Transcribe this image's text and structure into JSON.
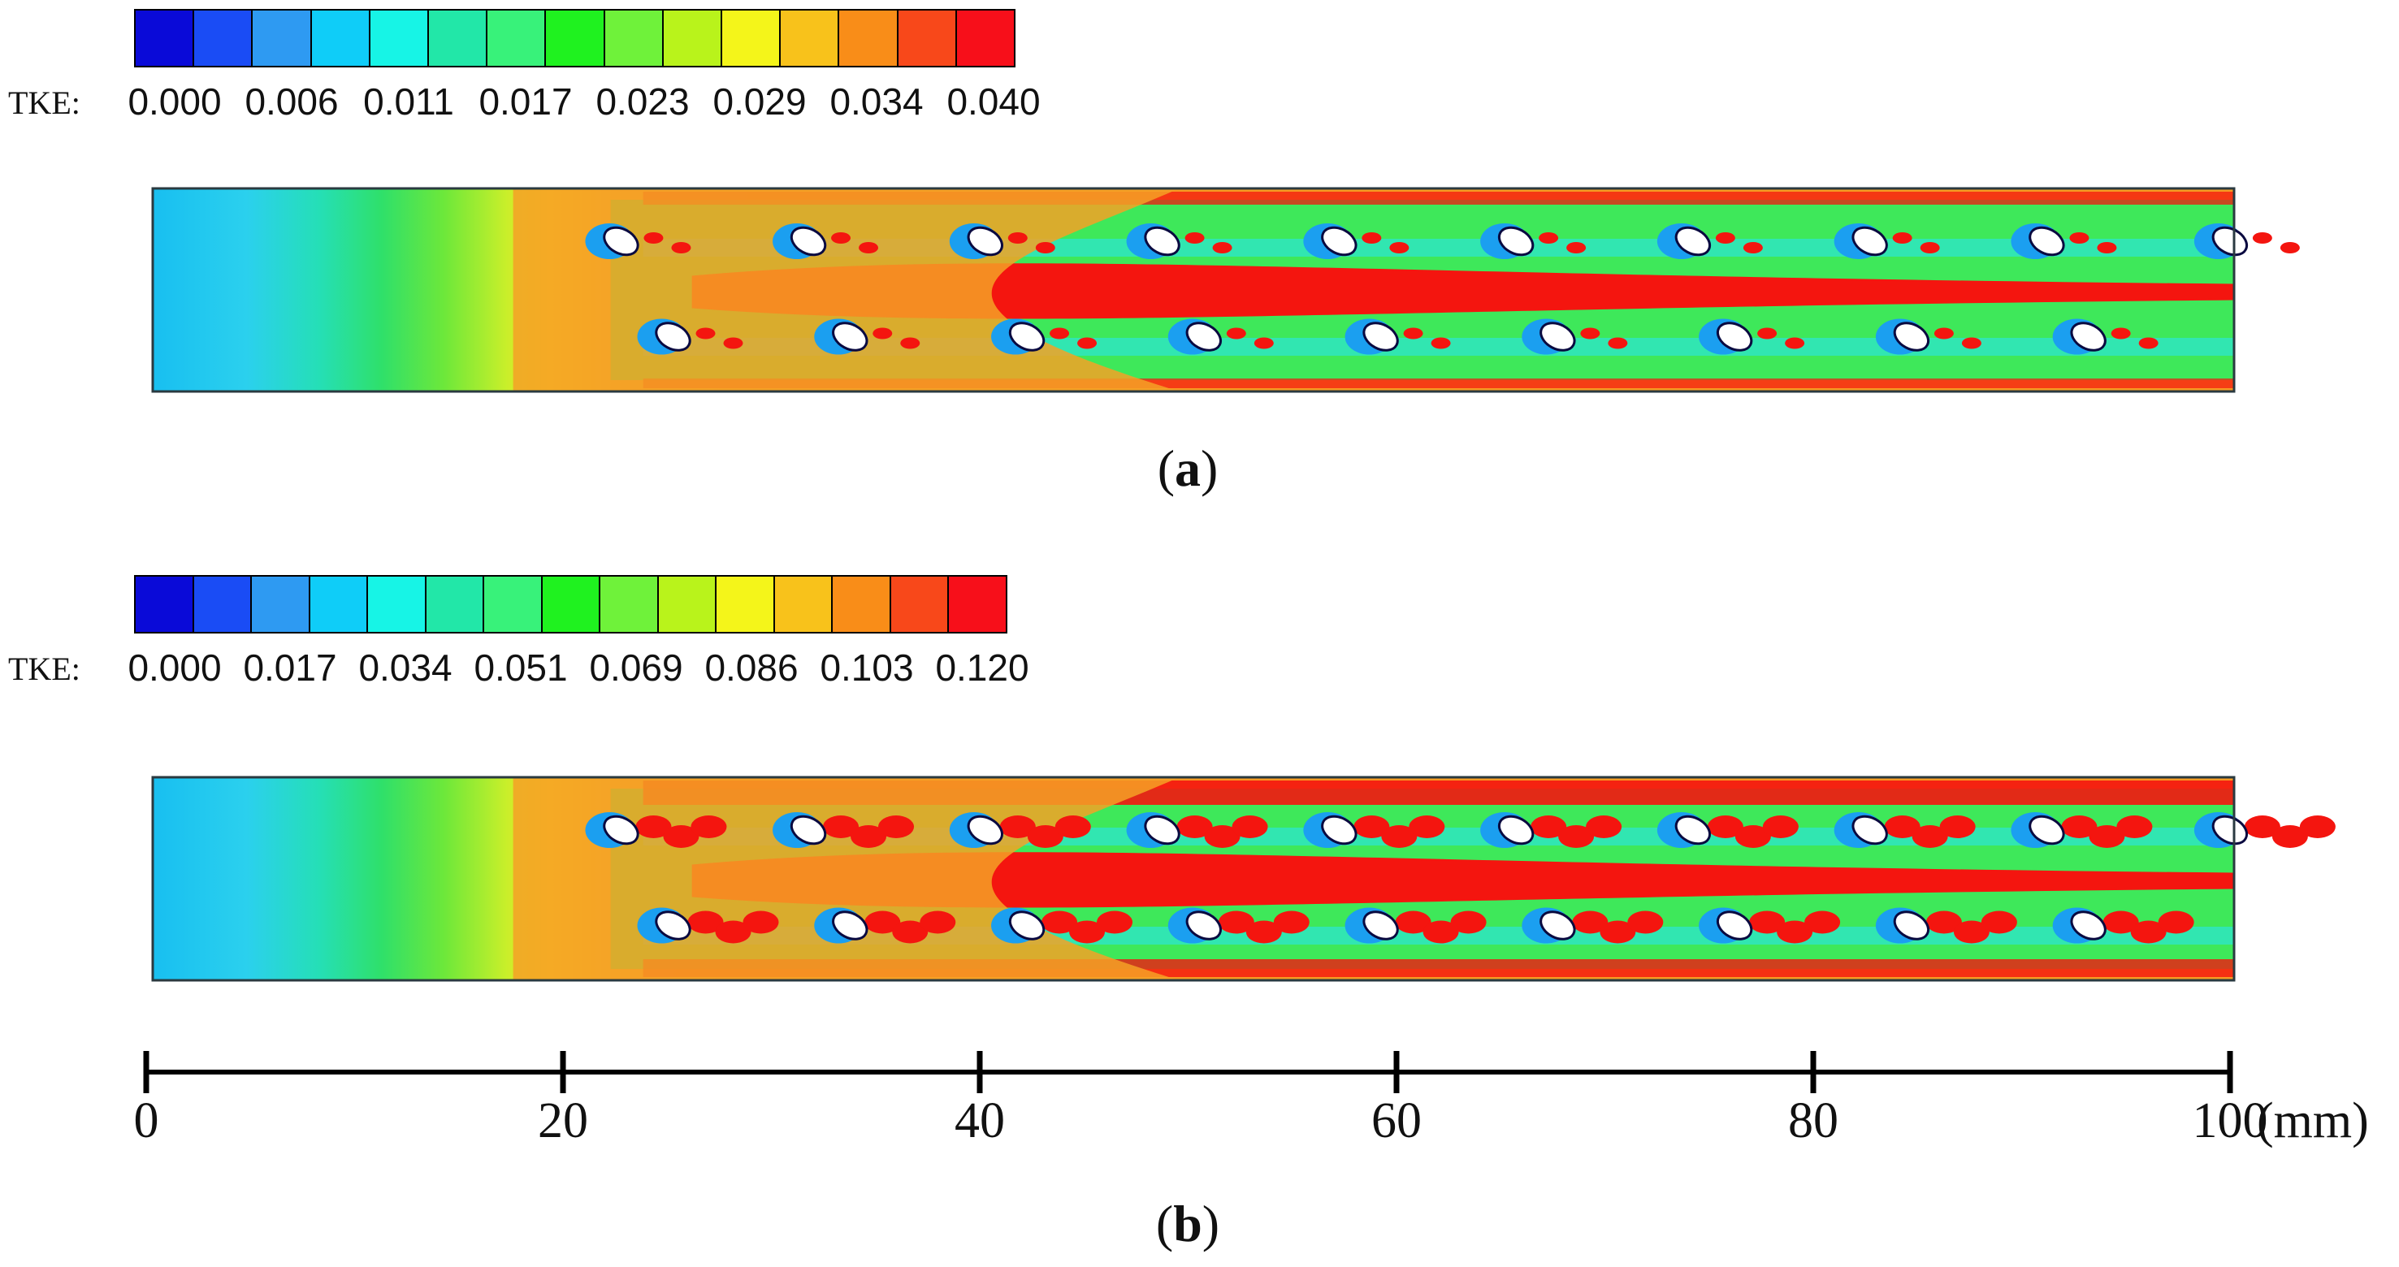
{
  "colors": {
    "scale": [
      "#0a0ad8",
      "#1a4cf5",
      "#2e9af2",
      "#0fcdf8",
      "#17f4e6",
      "#22e7a8",
      "#38f27a",
      "#1ff21f",
      "#6ff23a",
      "#b9f31b",
      "#f4f51a",
      "#f8c21b",
      "#f98d18",
      "#f8481a",
      "#f70f1a"
    ],
    "inlet_blue": "#18bff0",
    "mid_green": "#3ee85a",
    "hot_red": "#f4150f",
    "warm_orange": "#f7a32a"
  },
  "panels": [
    {
      "id": "a",
      "caption_open": "(",
      "caption_letter": "a",
      "caption_close": ")",
      "colorbar": {
        "title": "TKE:",
        "tick_labels": [
          "0.000",
          "0.006",
          "0.011",
          "0.017",
          "0.023",
          "0.029",
          "0.034",
          "0.040"
        ],
        "range": [
          0.0,
          0.04
        ]
      }
    },
    {
      "id": "b",
      "caption_open": "(",
      "caption_letter": "b",
      "caption_close": ")",
      "colorbar": {
        "title": "TKE:",
        "tick_labels": [
          "0.000",
          "0.017",
          "0.034",
          "0.051",
          "0.069",
          "0.086",
          "0.103",
          "0.120"
        ],
        "range": [
          0.0,
          0.12
        ]
      }
    }
  ],
  "scale_bar": {
    "unit": "(mm)",
    "ticks": [
      "0",
      "20",
      "40",
      "60",
      "80",
      "100"
    ],
    "range_mm": [
      0,
      100
    ]
  },
  "channel": {
    "length_mm": 100,
    "pin_row_upper_mm": [
      22.5,
      31.5,
      40.0,
      48.5,
      57.0,
      65.5,
      74.0,
      82.5,
      91.0,
      99.8
    ],
    "pin_row_lower_mm": [
      25.0,
      33.5,
      42.0,
      50.5,
      59.0,
      67.5,
      76.0,
      84.5,
      93.0
    ]
  }
}
